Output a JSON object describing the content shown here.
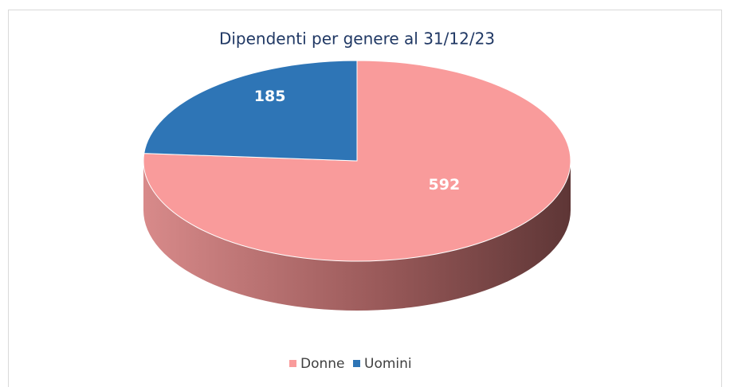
{
  "chart_data": {
    "type": "pie",
    "title": "Dipendenti per genere al 31/12/23",
    "categories": [
      "Donne",
      "Uomini"
    ],
    "values": [
      592,
      185
    ],
    "colors": [
      "#f99b9b",
      "#2e75b6"
    ],
    "legend": "bottom"
  }
}
